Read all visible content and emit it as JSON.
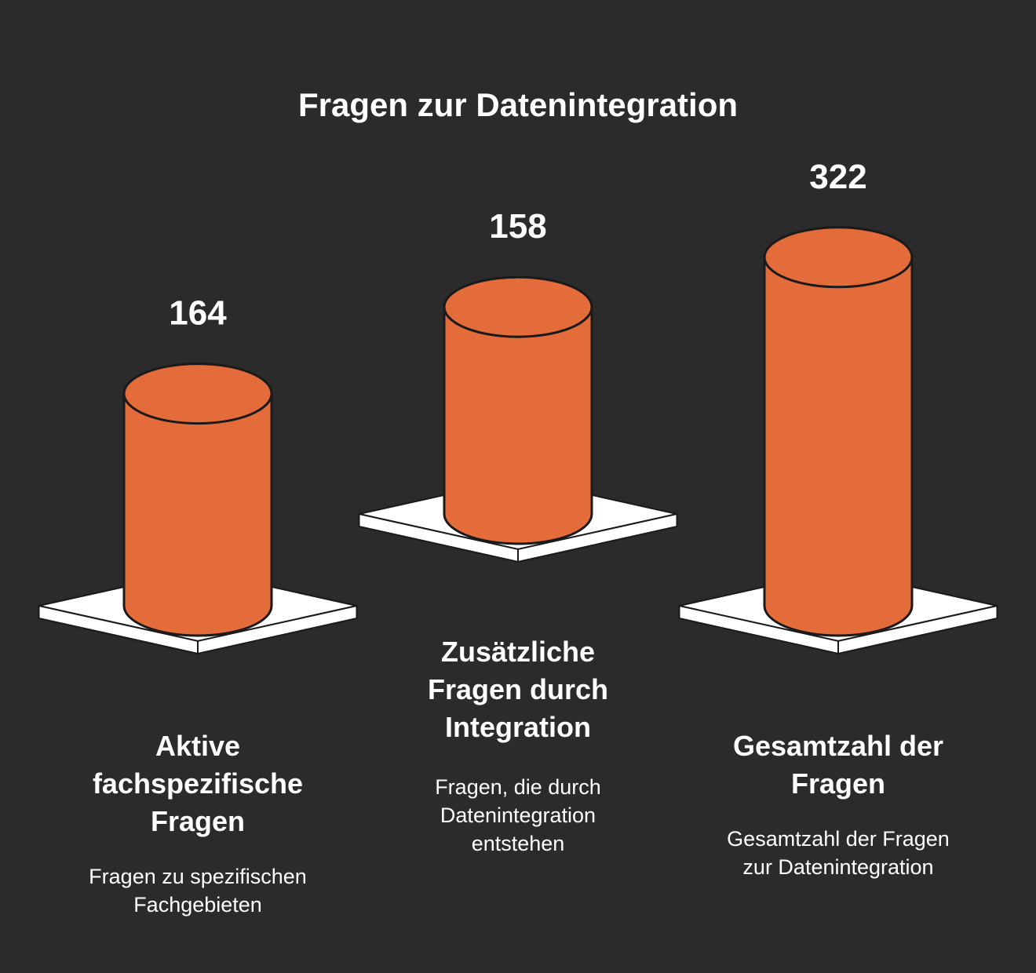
{
  "chart_data": {
    "type": "bar",
    "title": "Fragen zur Datenintegration",
    "categories": [
      "Aktive fachspezifische Fragen",
      "Zusätzliche Fragen durch Integration",
      "Gesamtzahl der Fragen"
    ],
    "values": [
      164,
      158,
      322
    ],
    "value_labels": [
      "164",
      "158",
      "322"
    ],
    "label_lines": [
      [
        "Aktive",
        "fachspezifische",
        "Fragen"
      ],
      [
        "Zusätzliche",
        "Fragen durch",
        "Integration"
      ],
      [
        "Gesamtzahl der",
        "Fragen"
      ]
    ],
    "descriptions": [
      [
        "Fragen zu spezifischen",
        "Fachgebieten"
      ],
      [
        "Fragen, die durch",
        "Datenintegration",
        "entstehen"
      ],
      [
        "Gesamtzahl der Fragen",
        "zur Datenintegration"
      ]
    ],
    "xlabel": "",
    "ylabel": "",
    "ylim": [
      0,
      322
    ],
    "grid": false,
    "legend": "none"
  },
  "colors": {
    "background": "#2b2b2b",
    "bar_fill": "#e46c3b",
    "bar_stroke": "#1a1a1a",
    "pedestal_top": "#ffffff",
    "pedestal_side": "#ffffff",
    "text": "#ffffff"
  }
}
